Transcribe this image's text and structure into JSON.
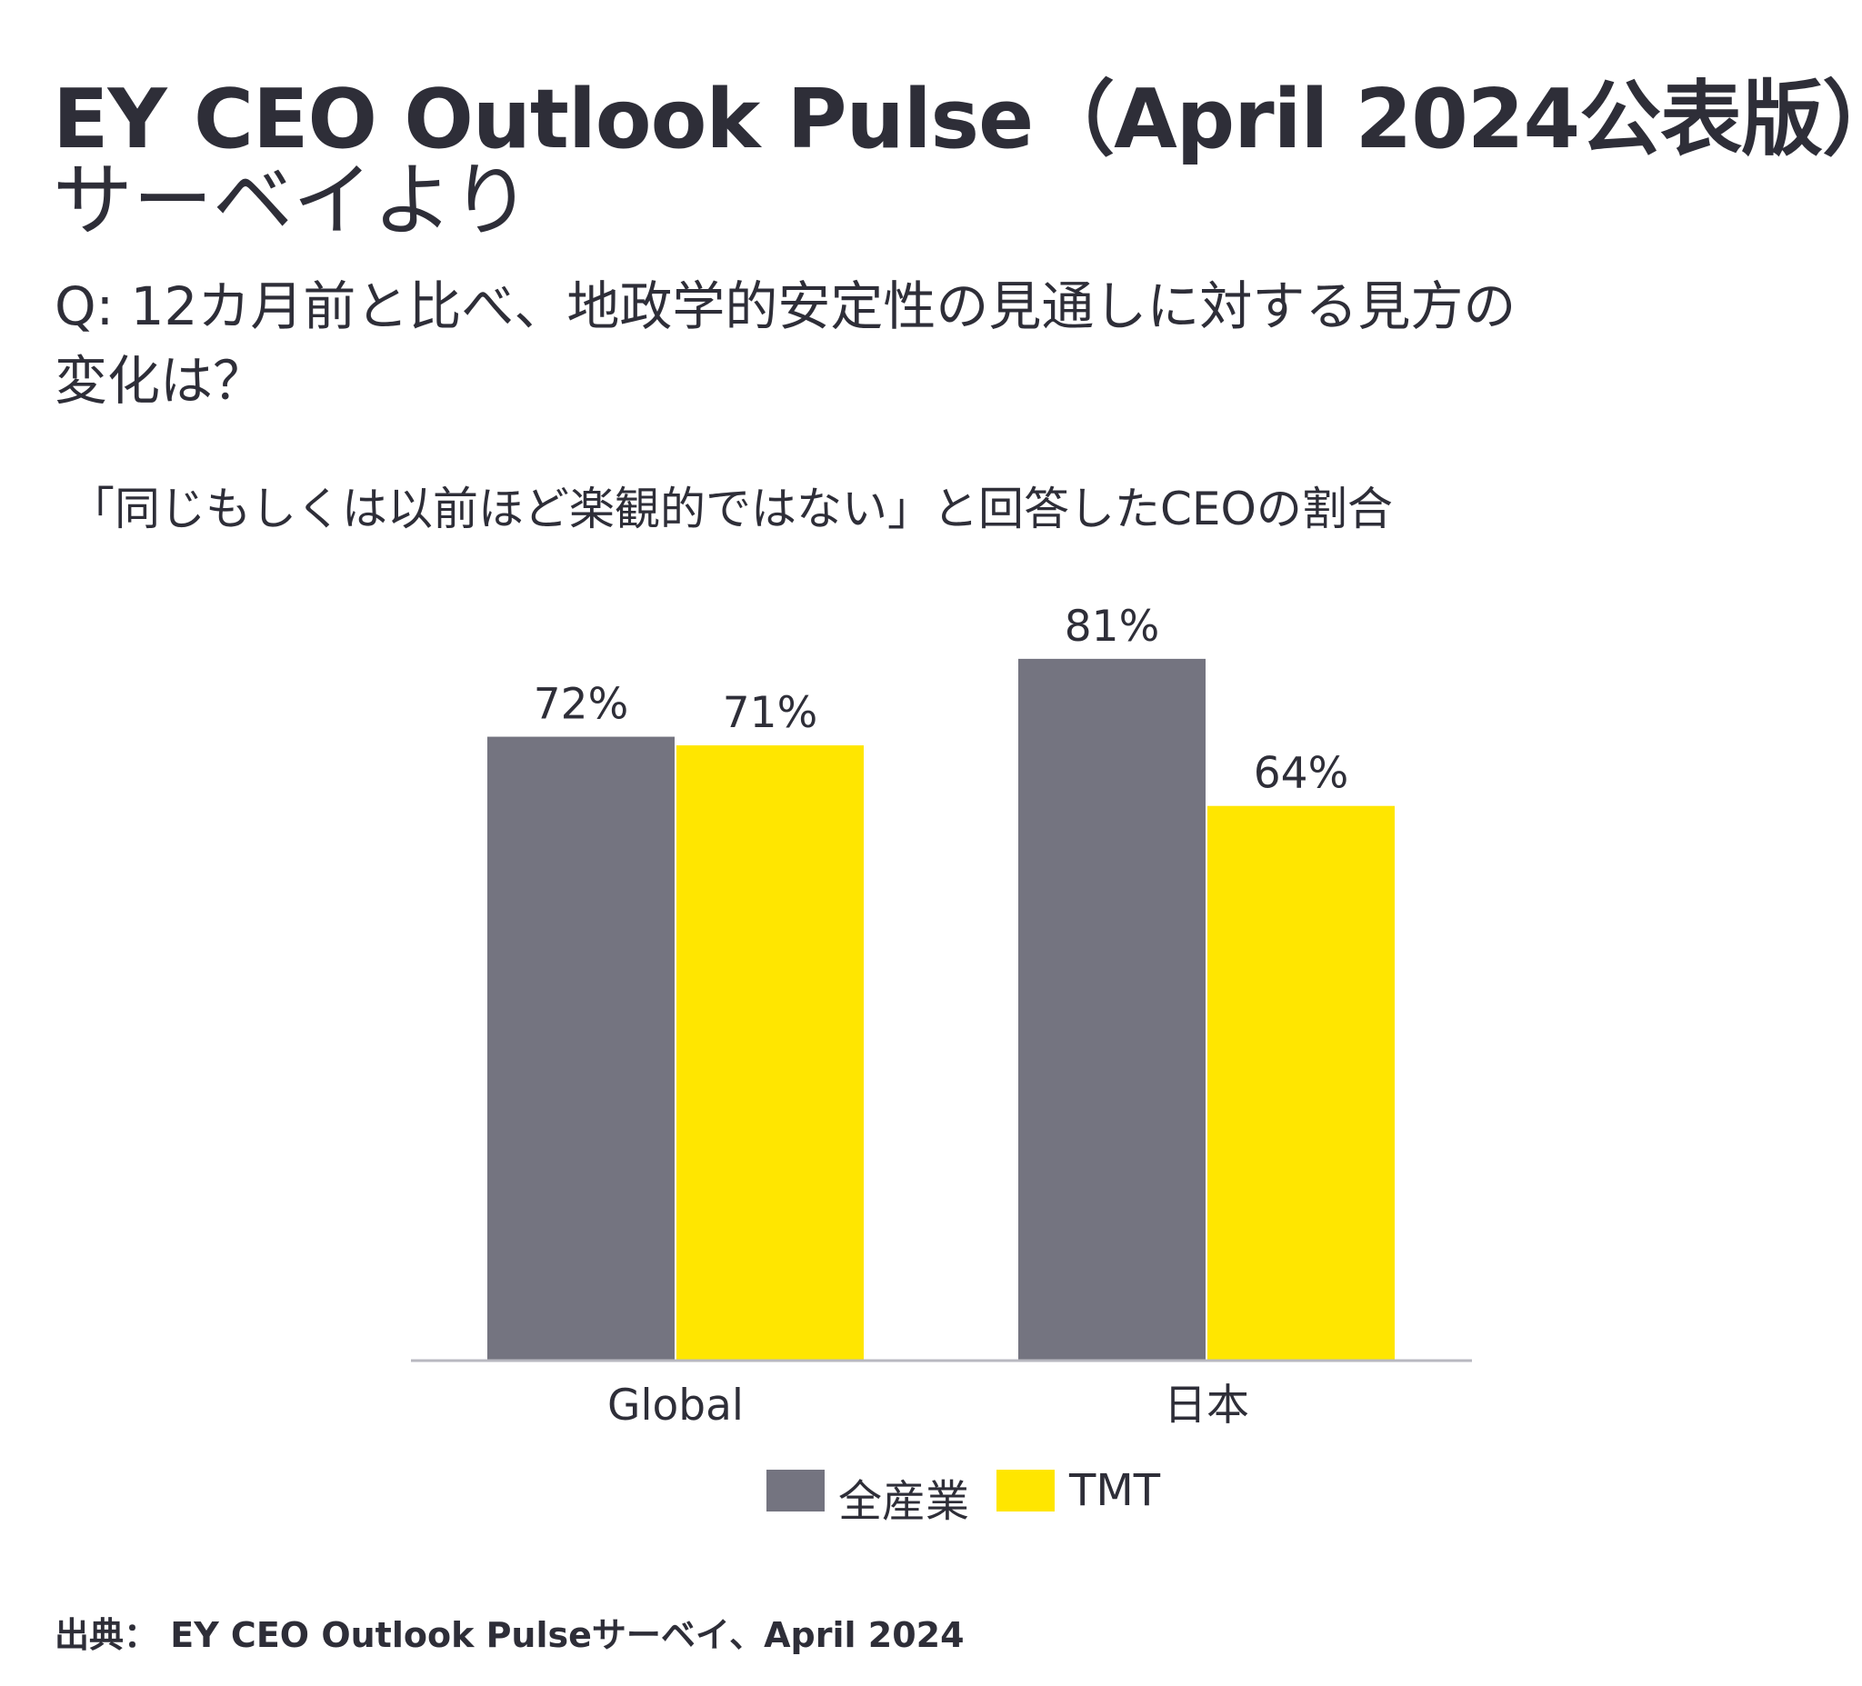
{
  "title": {
    "line1": "EY CEO Outlook Pulse（April 2024公表版）",
    "line2": "サーベイより"
  },
  "question": {
    "line1": "Q:  12カ月前と比べ、地政学的安定性の見通しに対する見方の",
    "line2": "変化は？"
  },
  "footer": "出典： EY CEO Outlook Pulseサーベイ、April 2024",
  "chart_data": {
    "type": "bar",
    "title": "「同じもしくは以前ほど楽観的ではない」と回答したCEOの割合",
    "categories": [
      "Global",
      "日本"
    ],
    "series": [
      {
        "name": "全産業",
        "values": [
          72,
          81
        ],
        "labels": [
          "72%",
          "81%"
        ],
        "color": "#747480"
      },
      {
        "name": "TMT",
        "values": [
          71,
          64
        ],
        "labels": [
          "71%",
          "64%"
        ],
        "color": "#FFE600"
      }
    ],
    "ylim": [
      0,
      100
    ],
    "xlabel": "",
    "ylabel": "",
    "grid": false,
    "legend": "bottom-center"
  }
}
